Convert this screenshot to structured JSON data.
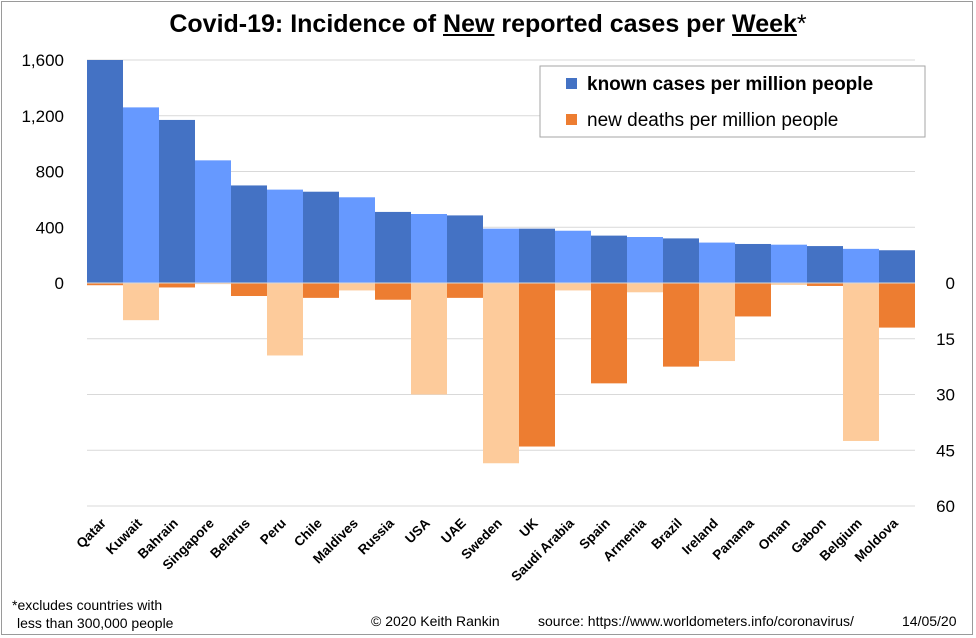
{
  "title": {
    "part1": "Covid-19: Incidence of ",
    "part2": "New",
    "part3": " reported cases per ",
    "part4": "Week",
    "part5": "*"
  },
  "footer": {
    "note_line1": "*excludes  countries with",
    "note_line2": "less than 300,000 people",
    "copyright": "© 2020  Keith Rankin",
    "source": "source:  https://www.worldometers.info/coronavirus/",
    "date": "14/05/20"
  },
  "chart_data": {
    "type": "bar",
    "title": "Covid-19: Incidence of New reported cases per Week*",
    "categories": [
      "Qatar",
      "Kuwait",
      "Bahrain",
      "Singapore",
      "Belarus",
      "Peru",
      "Chile",
      "Maldives",
      "Russia",
      "USA",
      "UAE",
      "Sweden",
      "UK",
      "Saudi Arabia",
      "Spain",
      "Armenia",
      "Brazil",
      "Ireland",
      "Panama",
      "Oman",
      "Gabon",
      "Belgium",
      "Moldova"
    ],
    "series": [
      {
        "name": "known cases per million people",
        "axis": "left",
        "color": "#4472c4",
        "alt_color": "#6699ff",
        "values": [
          1600,
          1260,
          1170,
          880,
          700,
          670,
          655,
          615,
          510,
          495,
          485,
          390,
          390,
          375,
          340,
          330,
          320,
          290,
          280,
          275,
          265,
          245,
          235
        ]
      },
      {
        "name": "new deaths per million people",
        "axis": "right",
        "color": "#ed7d31",
        "alt_color": "#fdcb9b",
        "values": [
          0.6,
          10,
          1.2,
          0.3,
          3.5,
          19.5,
          4,
          2,
          4.5,
          30,
          4,
          48.5,
          44,
          2,
          27,
          2.5,
          22.5,
          21,
          9,
          0.5,
          0.8,
          42.5,
          12
        ]
      }
    ],
    "left_axis": {
      "ticks": [
        "0",
        "400",
        "800",
        "1,200",
        "1,600"
      ],
      "range": [
        -1600,
        1600
      ]
    },
    "right_axis": {
      "ticks": [
        "0",
        "15",
        "30",
        "45",
        "60"
      ],
      "range": [
        0,
        60
      ],
      "inverted": true
    },
    "grid": true,
    "legend_position": "top-right"
  }
}
